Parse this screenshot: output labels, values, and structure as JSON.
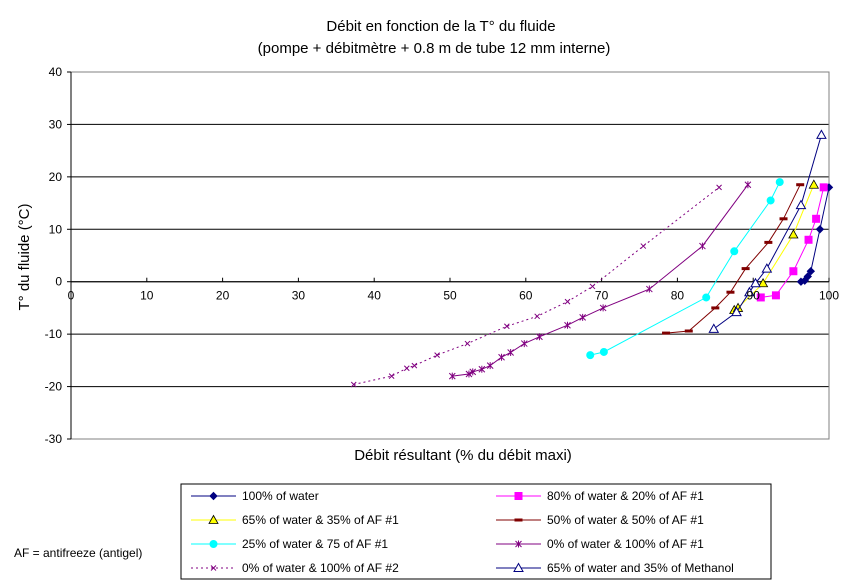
{
  "chart_data": {
    "type": "line",
    "title": "Débit en fonction de la T° du fluide",
    "subtitle": "(pompe + débitmètre + 0.8 m de tube 12 mm interne)",
    "xlabel": "Débit résultant (% du débit maxi)",
    "ylabel": "T° du fluide (°C)",
    "xlim": [
      0,
      100
    ],
    "ylim": [
      -30,
      40
    ],
    "xticks": [
      0,
      10,
      20,
      30,
      40,
      50,
      60,
      70,
      80,
      90,
      100
    ],
    "yticks": [
      -30,
      -20,
      -10,
      0,
      10,
      20,
      30,
      40
    ],
    "grid": "horizontal",
    "legend_placement": "bottom",
    "footnote": "AF = antifreeze (antigel)",
    "series": [
      {
        "name": "100%  of water",
        "color": "#000080",
        "marker": "diamond",
        "x": [
          96.3,
          96.8,
          97.2,
          97.6,
          98.8,
          100
        ],
        "y": [
          0,
          0.2,
          1,
          2,
          10,
          18
        ]
      },
      {
        "name": "80% of water & 20% of AF #1",
        "color": "#ff00ff",
        "marker": "square",
        "x": [
          91,
          93,
          95.3,
          97.3,
          98.3,
          99.3
        ],
        "y": [
          -3,
          -2.6,
          2,
          8,
          12,
          18
        ]
      },
      {
        "name": "65%  of water & 35% of AF #1",
        "color": "#ffff00",
        "marker": "triangle-filled",
        "x": [
          87.5,
          88,
          91.3,
          95.3,
          98
        ],
        "y": [
          -5.4,
          -5,
          -0.3,
          9,
          18.5
        ]
      },
      {
        "name": "50% of water & 50% of AF #1",
        "color": "#800000",
        "marker": "dash",
        "x": [
          78.5,
          81.5,
          85,
          87,
          89,
          92,
          94,
          96.2
        ],
        "y": [
          -9.8,
          -9.4,
          -5,
          -2,
          2.5,
          7.5,
          12,
          18.5
        ]
      },
      {
        "name": "25% of water & 75 of AF #1",
        "color": "#00ffff",
        "marker": "circle",
        "x": [
          68.5,
          70.3,
          83.8,
          87.5,
          92.3,
          93.5
        ],
        "y": [
          -14,
          -13.4,
          -3,
          5.8,
          15.5,
          19
        ]
      },
      {
        "name": "0%  of water & 100% of AF #1",
        "color": "#800080",
        "marker": "star",
        "x": [
          50.3,
          52.5,
          53,
          54.2,
          55.3,
          56.8,
          58,
          59.8,
          61.8,
          65.5,
          67.5,
          70.2,
          76.3,
          83.3,
          89.3
        ],
        "y": [
          -18,
          -17.6,
          -17.2,
          -16.7,
          -16,
          -14.4,
          -13.5,
          -11.8,
          -10.5,
          -8.3,
          -6.8,
          -5,
          -1.4,
          6.8,
          18.5
        ]
      },
      {
        "name": "0% of water & 100% of AF #2",
        "color": "#800080",
        "marker": "x",
        "dash": "2,3",
        "x": [
          37.3,
          42.3,
          44.3,
          45.3,
          48.3,
          52.3,
          57.5,
          61.5,
          65.5,
          68.8,
          75.5,
          85.5
        ],
        "y": [
          -19.6,
          -18,
          -16.5,
          -16,
          -14,
          -11.8,
          -8.5,
          -6.6,
          -3.8,
          -0.9,
          6.8,
          18
        ]
      },
      {
        "name": "65% of water and 35%  of Methanol",
        "color": "#000080",
        "marker": "triangle-open",
        "x": [
          84.8,
          87.8,
          89.5,
          90.3,
          91.8,
          96.3,
          99
        ],
        "y": [
          -9,
          -5.8,
          -2,
          -0.3,
          2.5,
          14.6,
          28
        ]
      }
    ]
  }
}
